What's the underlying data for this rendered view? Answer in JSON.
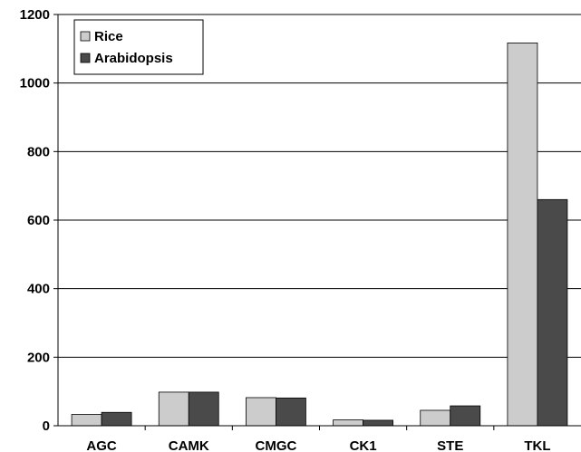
{
  "chart_data": {
    "type": "bar",
    "categories": [
      "AGC",
      "CAMK",
      "CMGC",
      "CK1",
      "STE",
      "TKL"
    ],
    "series": [
      {
        "name": "Rice",
        "color": "#cccccc",
        "values": [
          33,
          98,
          82,
          17,
          45,
          1117
        ]
      },
      {
        "name": "Arabidopsis",
        "color": "#4a4a4a",
        "values": [
          39,
          98,
          81,
          16,
          58,
          660
        ]
      }
    ],
    "title": "",
    "xlabel": "",
    "ylabel": "",
    "ylim": [
      0,
      1200
    ],
    "yticks": [
      "0",
      "200",
      "400",
      "600",
      "800",
      "1000",
      "1200"
    ],
    "grid": true,
    "legend_position": "top-left"
  }
}
